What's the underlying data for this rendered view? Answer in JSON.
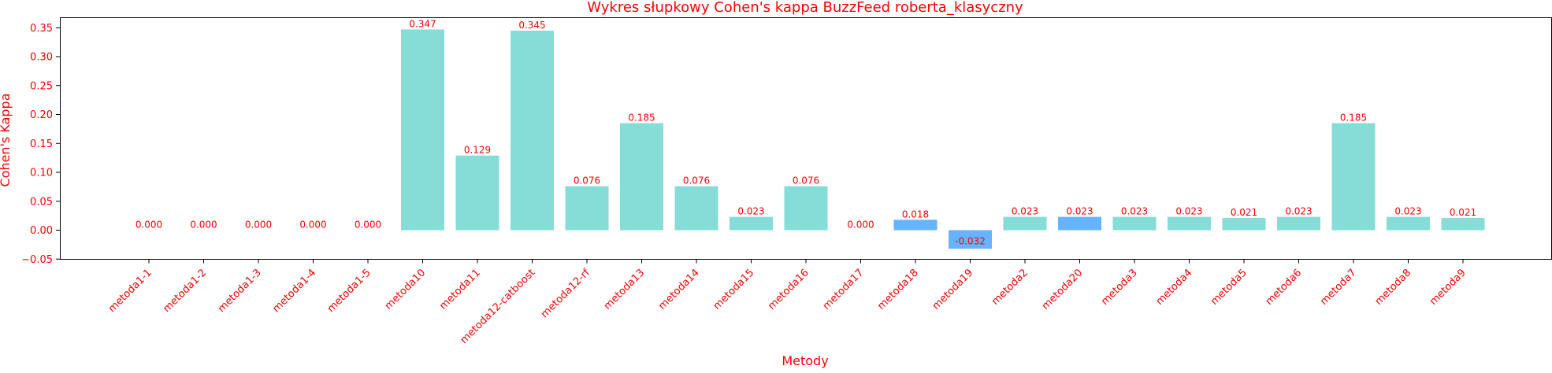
{
  "chart_data": {
    "type": "bar",
    "title": "Wykres słupkowy Cohen's kappa BuzzFeed roberta_klasyczny",
    "xlabel": "Metody",
    "ylabel": "Cohen's Kappa",
    "ylim": [
      -0.05,
      0.36
    ],
    "yticks": [
      "−0.05",
      "0.00",
      "0.05",
      "0.10",
      "0.15",
      "0.20",
      "0.25",
      "0.30",
      "0.35"
    ],
    "ytick_values": [
      -0.05,
      0.0,
      0.05,
      0.1,
      0.15,
      0.2,
      0.25,
      0.3,
      0.35
    ],
    "grid": false,
    "categories": [
      "metoda1-1",
      "metoda1-2",
      "metoda1-3",
      "metoda1-4",
      "metoda1-5",
      "metoda10",
      "metoda11",
      "metoda12-catboost",
      "metoda12-rf",
      "metoda13",
      "metoda14",
      "metoda15",
      "metoda16",
      "metoda17",
      "metoda18",
      "metoda19",
      "metoda2",
      "metoda20",
      "metoda3",
      "metoda4",
      "metoda5",
      "metoda6",
      "metoda7",
      "metoda8",
      "metoda9"
    ],
    "values": [
      0.0,
      0.0,
      0.0,
      0.0,
      0.0,
      0.347,
      0.129,
      0.345,
      0.076,
      0.185,
      0.076,
      0.023,
      0.076,
      0.0,
      0.018,
      -0.032,
      0.023,
      0.023,
      0.023,
      0.023,
      0.021,
      0.023,
      0.185,
      0.023,
      0.021
    ],
    "value_labels": [
      "0.000",
      "0.000",
      "0.000",
      "0.000",
      "0.000",
      "0.347",
      "0.129",
      "0.345",
      "0.076",
      "0.185",
      "0.076",
      "0.023",
      "0.076",
      "0.000",
      "0.018",
      "-0.032",
      "0.023",
      "0.023",
      "0.023",
      "0.023",
      "0.021",
      "0.023",
      "0.185",
      "0.023",
      "0.021"
    ],
    "highlighted": [
      "metoda18",
      "metoda19",
      "metoda20"
    ],
    "colors": {
      "bar": "#86dcd6",
      "bar_highlight": "#66b3ff",
      "text": "#ff0000",
      "axis": "#000000"
    }
  }
}
